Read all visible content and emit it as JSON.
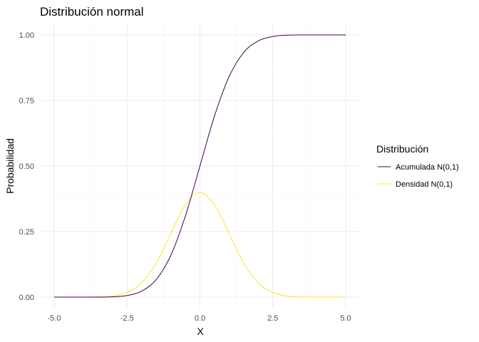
{
  "chart_data": {
    "type": "line",
    "title": "Distribución normal",
    "xlabel": "X",
    "ylabel": "Probabilidad",
    "xlim": [
      -5,
      5
    ],
    "ylim": [
      0,
      1
    ],
    "x_ticks": [
      "-5.0",
      "-2.5",
      "0.0",
      "2.5",
      "5.0"
    ],
    "y_ticks": [
      "0.00",
      "0.25",
      "0.50",
      "0.75",
      "1.00"
    ],
    "grid": true,
    "legend": {
      "title": "Distribución",
      "placement": "right"
    },
    "x": [
      -5.0,
      -4.5,
      -4.0,
      -3.5,
      -3.0,
      -2.5,
      -2.0,
      -1.5,
      -1.0,
      -0.5,
      0.0,
      0.5,
      1.0,
      1.5,
      2.0,
      2.5,
      3.0,
      3.5,
      4.0,
      4.5,
      5.0
    ],
    "series": [
      {
        "name": "Acumulada N(0,1)",
        "color": "#440154",
        "values": [
          0.0,
          0.0,
          0.0,
          0.0,
          0.001,
          0.006,
          0.023,
          0.067,
          0.159,
          0.309,
          0.5,
          0.691,
          0.841,
          0.933,
          0.977,
          0.994,
          0.999,
          1.0,
          1.0,
          1.0,
          1.0
        ]
      },
      {
        "name": "Densidad N(0,1)",
        "color": "#FDE725",
        "values": [
          0.0,
          0.0,
          0.0,
          0.001,
          0.004,
          0.018,
          0.054,
          0.13,
          0.242,
          0.352,
          0.399,
          0.352,
          0.242,
          0.13,
          0.054,
          0.018,
          0.004,
          0.001,
          0.0,
          0.0,
          0.0
        ]
      }
    ]
  }
}
